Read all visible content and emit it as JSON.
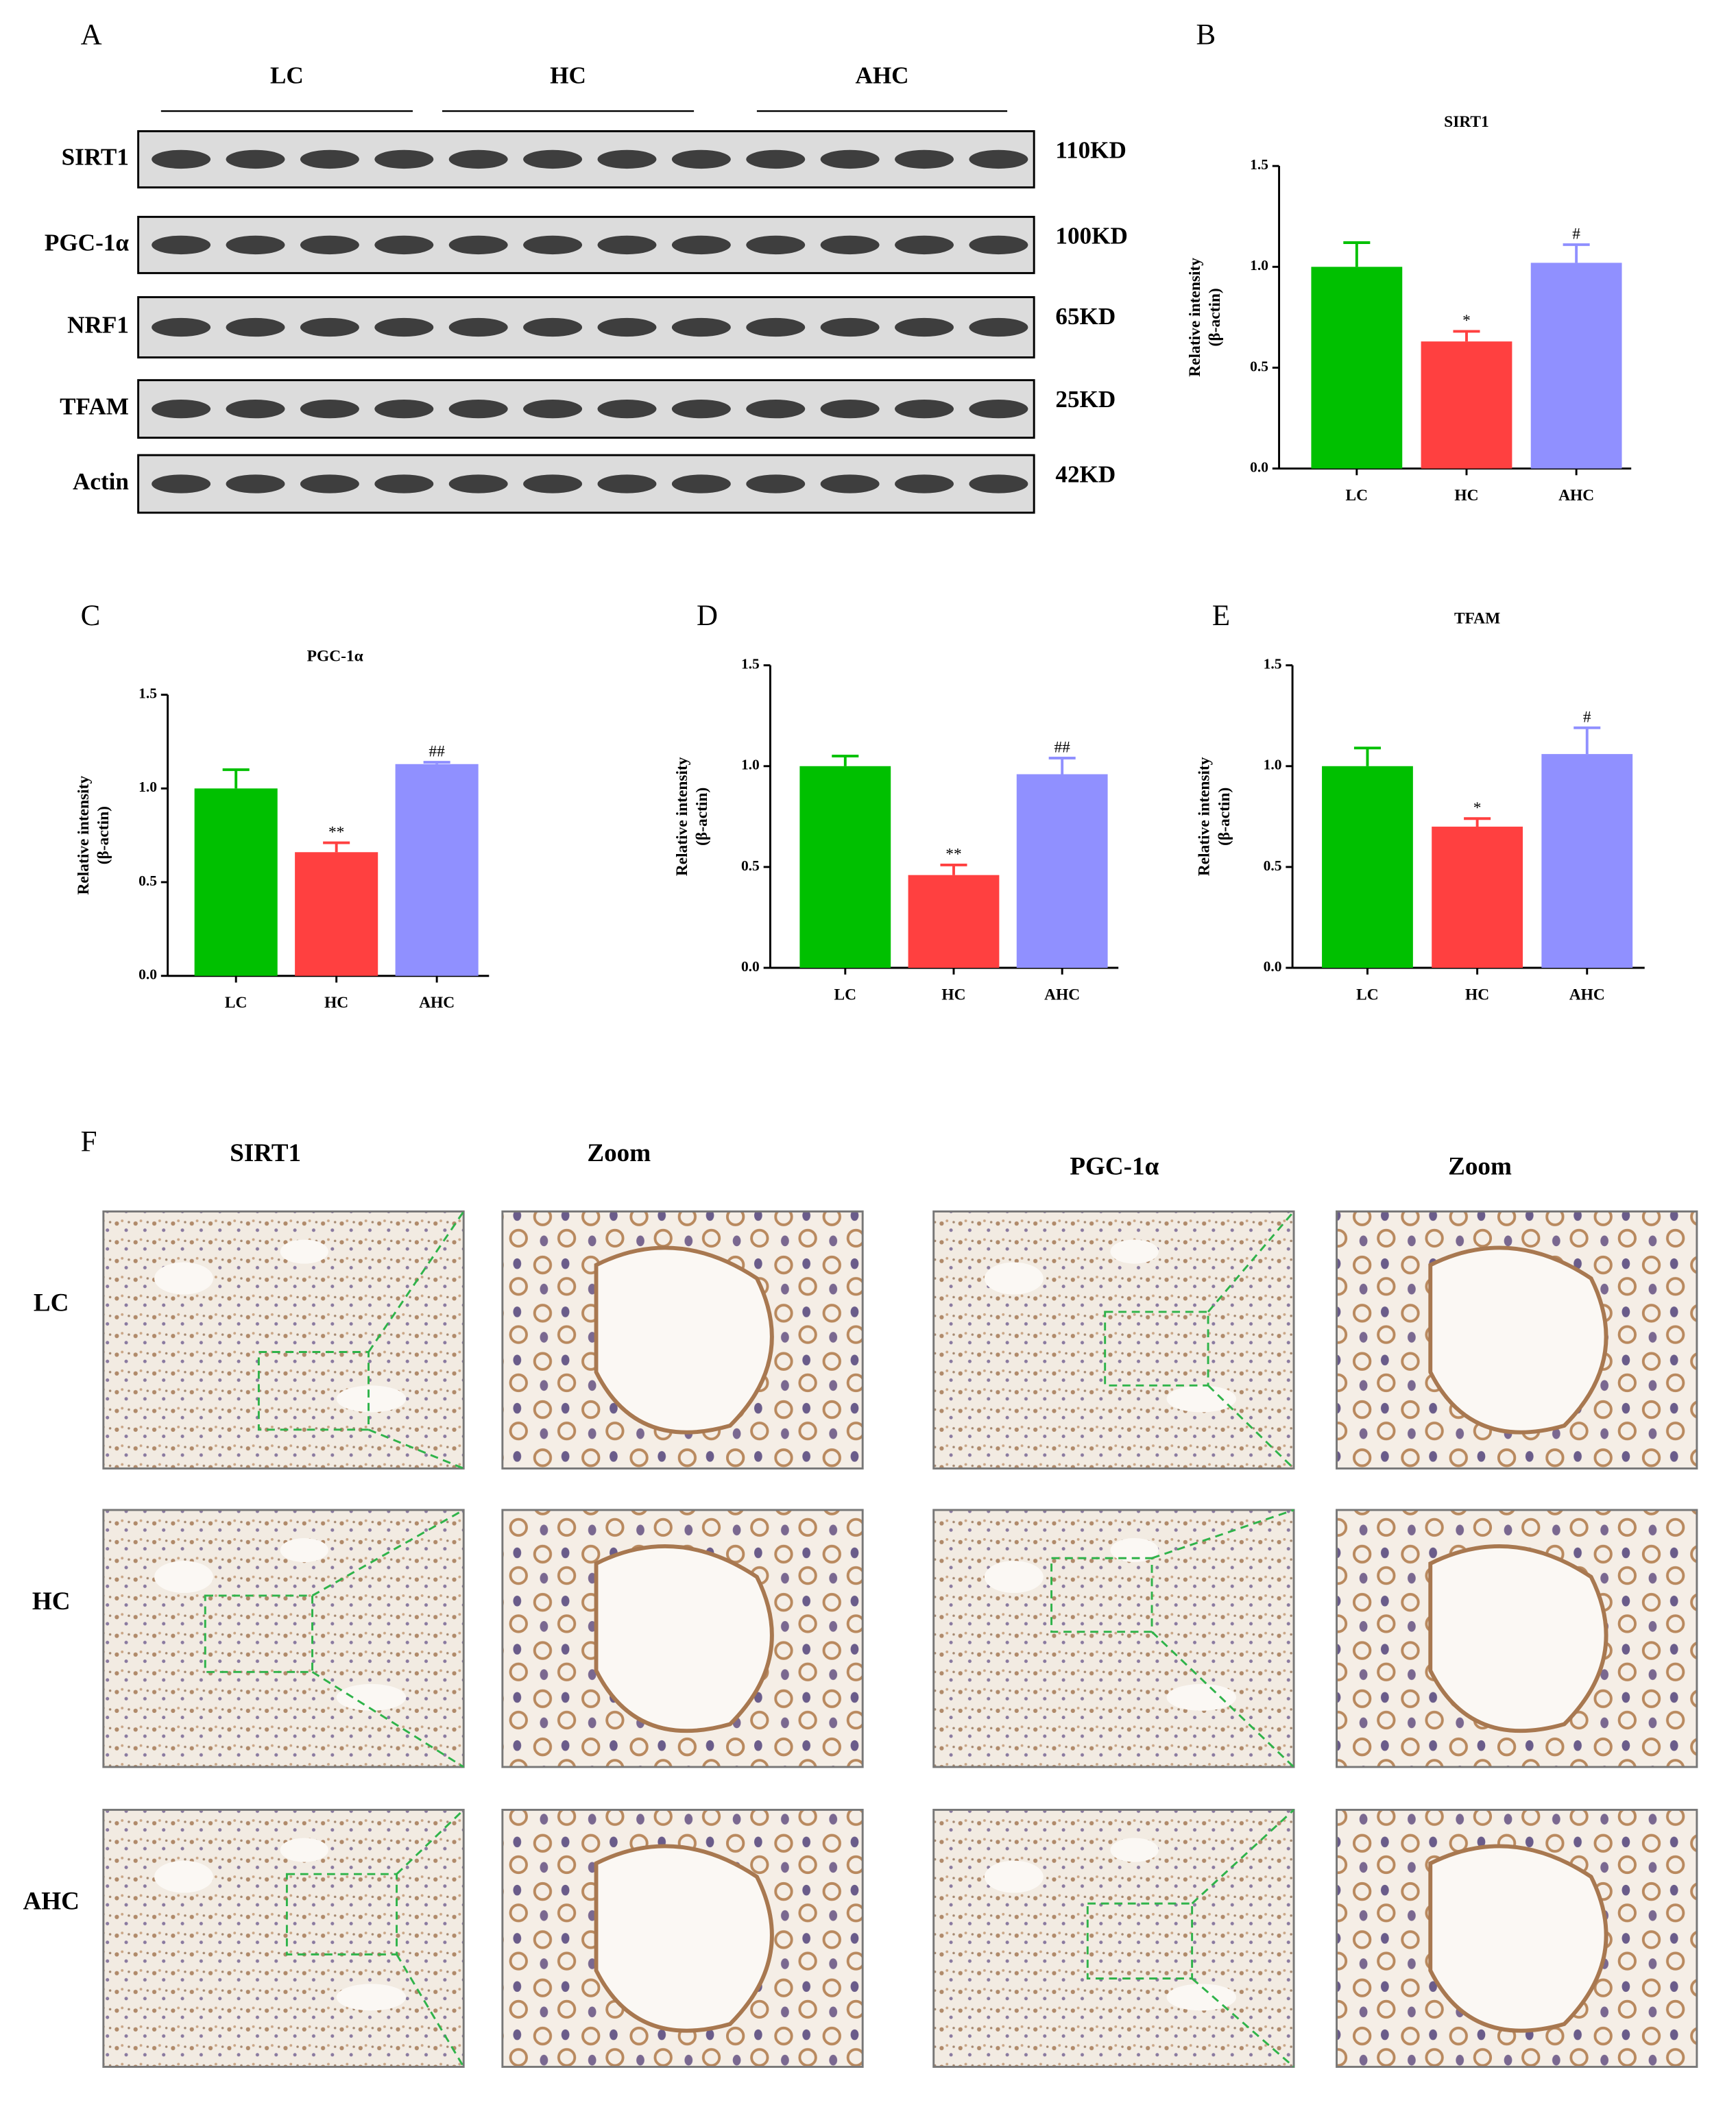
{
  "blot": {
    "panel": "A",
    "groups": [
      "LC",
      "HC",
      "AHC"
    ],
    "rows": [
      {
        "protein": "SIRT1",
        "size": "110KD"
      },
      {
        "protein": "PGC-1α",
        "size": "100KD"
      },
      {
        "protein": "NRF1",
        "size": "65KD"
      },
      {
        "protein": "TFAM",
        "size": "25KD"
      },
      {
        "protein": "Actin",
        "size": "42KD"
      }
    ]
  },
  "chart_data": [
    {
      "type": "bar",
      "panel": "B",
      "title": "SIRT1",
      "ylabel": [
        "Relative intensity",
        "(β-actin)"
      ],
      "categories": [
        "LC",
        "HC",
        "AHC"
      ],
      "values": [
        1.0,
        0.63,
        1.02
      ],
      "errors": [
        0.12,
        0.05,
        0.09
      ],
      "colors": [
        "#00c000",
        "#ff4040",
        "#9090ff"
      ],
      "significance": [
        null,
        "*",
        "#"
      ],
      "ylim": [
        0,
        1.5
      ],
      "yticks": [
        {
          "value": 0,
          "label": "0.0"
        },
        {
          "value": 0.5,
          "label": "0.5"
        },
        {
          "value": 1,
          "label": "1.0"
        },
        {
          "value": 1.5,
          "label": "1.5"
        }
      ]
    },
    {
      "type": "bar",
      "panel": "C",
      "title": "PGC-1α",
      "ylabel": [
        "Relative intensity",
        "(β-actin)"
      ],
      "categories": [
        "LC",
        "HC",
        "AHC"
      ],
      "values": [
        1.0,
        0.66,
        1.13
      ],
      "errors": [
        0.1,
        0.05,
        0.01
      ],
      "colors": [
        "#00c000",
        "#ff4040",
        "#9090ff"
      ],
      "significance": [
        null,
        "**",
        "##"
      ],
      "ylim": [
        0,
        1.5
      ],
      "yticks": [
        {
          "value": 0,
          "label": "0.0"
        },
        {
          "value": 0.5,
          "label": "0.5"
        },
        {
          "value": 1,
          "label": "1.0"
        },
        {
          "value": 1.5,
          "label": "1.5"
        }
      ]
    },
    {
      "type": "bar",
      "panel": "D",
      "ylabel": [
        "Relative intensity",
        "(β-actin)"
      ],
      "categories": [
        "LC",
        "HC",
        "AHC"
      ],
      "values": [
        1.0,
        0.46,
        0.96
      ],
      "errors": [
        0.05,
        0.05,
        0.08
      ],
      "colors": [
        "#00c000",
        "#ff4040",
        "#9090ff"
      ],
      "significance": [
        null,
        "**",
        "##"
      ],
      "ylim": [
        0,
        1.5
      ],
      "yticks": [
        {
          "value": 0,
          "label": "0.0"
        },
        {
          "value": 0.5,
          "label": "0.5"
        },
        {
          "value": 1,
          "label": "1.0"
        },
        {
          "value": 1.5,
          "label": "1.5"
        }
      ]
    },
    {
      "type": "bar",
      "panel": "E",
      "title": "TFAM",
      "ylabel": [
        "Relative intensity",
        "(β-actin)"
      ],
      "categories": [
        "LC",
        "HC",
        "AHC"
      ],
      "values": [
        1.0,
        0.7,
        1.06
      ],
      "errors": [
        0.09,
        0.04,
        0.13
      ],
      "colors": [
        "#00c000",
        "#ff4040",
        "#9090ff"
      ],
      "significance": [
        null,
        "*",
        "#"
      ],
      "ylim": [
        0,
        1.5
      ],
      "yticks": [
        {
          "value": 0,
          "label": "0.0"
        },
        {
          "value": 0.5,
          "label": "0.5"
        },
        {
          "value": 1,
          "label": "1.0"
        },
        {
          "value": 1.5,
          "label": "1.5"
        }
      ]
    }
  ],
  "histology": {
    "panel": "F",
    "columns": [
      "SIRT1",
      "Zoom",
      "PGC-1α",
      "Zoom"
    ],
    "rows": [
      "LC",
      "HC",
      "AHC"
    ]
  }
}
